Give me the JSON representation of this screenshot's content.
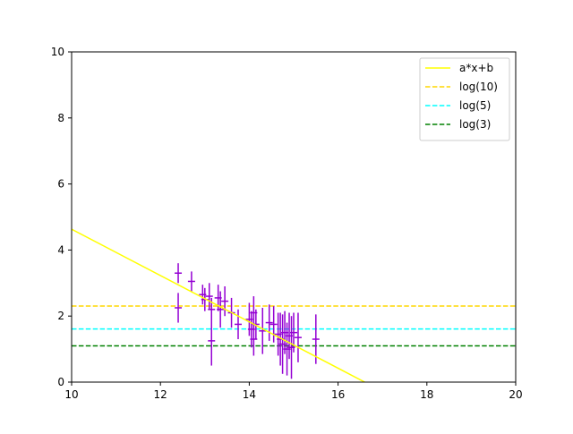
{
  "chart_data": {
    "type": "scatter",
    "title": "",
    "xlabel": "",
    "ylabel": "",
    "xlim": [
      10,
      20
    ],
    "ylim": [
      0,
      10
    ],
    "x_ticks": [
      "10",
      "12",
      "14",
      "16",
      "18",
      "20"
    ],
    "y_ticks": [
      "0",
      "2",
      "4",
      "6",
      "8",
      "10"
    ],
    "grid": false,
    "legend_position": "top-right",
    "errorbar_color": "#9400d3",
    "errorbars": [
      {
        "x": 12.4,
        "y": 3.3,
        "yerr": 0.3
      },
      {
        "x": 12.4,
        "y": 2.25,
        "yerr": 0.45
      },
      {
        "x": 12.7,
        "y": 3.05,
        "yerr": 0.3
      },
      {
        "x": 12.95,
        "y": 2.65,
        "yerr": 0.3
      },
      {
        "x": 13.0,
        "y": 2.5,
        "yerr": 0.35
      },
      {
        "x": 13.1,
        "y": 2.6,
        "yerr": 0.4
      },
      {
        "x": 13.15,
        "y": 2.2,
        "yerr": 0.35
      },
      {
        "x": 13.15,
        "y": 1.25,
        "yerr": 0.75
      },
      {
        "x": 13.3,
        "y": 2.55,
        "yerr": 0.4
      },
      {
        "x": 13.35,
        "y": 2.2,
        "yerr": 0.55
      },
      {
        "x": 13.45,
        "y": 2.45,
        "yerr": 0.45
      },
      {
        "x": 13.6,
        "y": 2.1,
        "yerr": 0.45
      },
      {
        "x": 13.75,
        "y": 1.75,
        "yerr": 0.45
      },
      {
        "x": 14.0,
        "y": 1.9,
        "yerr": 0.5
      },
      {
        "x": 14.05,
        "y": 1.6,
        "yerr": 0.55
      },
      {
        "x": 14.1,
        "y": 2.1,
        "yerr": 0.5
      },
      {
        "x": 14.1,
        "y": 1.3,
        "yerr": 0.5
      },
      {
        "x": 14.15,
        "y": 1.75,
        "yerr": 0.45
      },
      {
        "x": 14.3,
        "y": 1.55,
        "yerr": 0.7
      },
      {
        "x": 14.45,
        "y": 1.8,
        "yerr": 0.55
      },
      {
        "x": 14.55,
        "y": 1.75,
        "yerr": 0.55
      },
      {
        "x": 14.65,
        "y": 1.45,
        "yerr": 0.65
      },
      {
        "x": 14.7,
        "y": 1.3,
        "yerr": 0.8
      },
      {
        "x": 14.75,
        "y": 1.15,
        "yerr": 0.9
      },
      {
        "x": 14.8,
        "y": 1.5,
        "yerr": 0.65
      },
      {
        "x": 14.85,
        "y": 1.0,
        "yerr": 0.8
      },
      {
        "x": 14.9,
        "y": 1.4,
        "yerr": 0.7
      },
      {
        "x": 14.95,
        "y": 1.05,
        "yerr": 0.95
      },
      {
        "x": 15.0,
        "y": 1.5,
        "yerr": 0.6
      },
      {
        "x": 15.1,
        "y": 1.35,
        "yerr": 0.75
      },
      {
        "x": 15.5,
        "y": 1.3,
        "yerr": 0.75
      }
    ],
    "fit_line": {
      "name": "a*x+b",
      "color": "#ffff00",
      "x": [
        10,
        16.6
      ],
      "y": [
        4.63,
        0
      ]
    },
    "hlines": [
      {
        "name": "log(10)",
        "y": 2.302585,
        "color": "#ffd700"
      },
      {
        "name": "log(5)",
        "y": 1.609438,
        "color": "#00ffff"
      },
      {
        "name": "log(3)",
        "y": 1.098612,
        "color": "#008000"
      }
    ]
  }
}
